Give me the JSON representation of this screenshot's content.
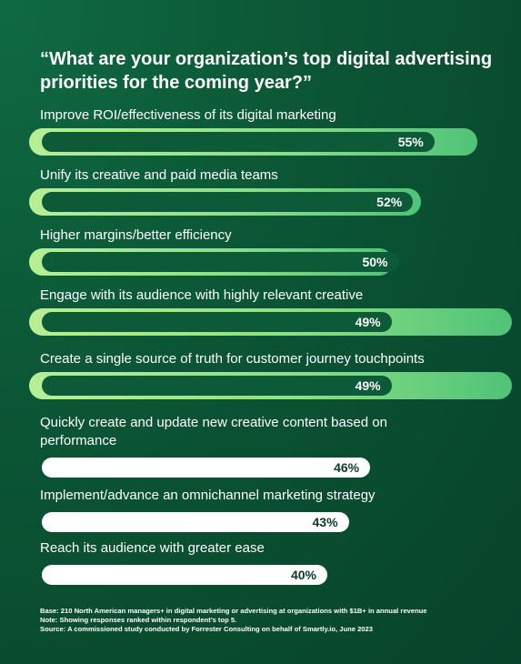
{
  "chart_data": {
    "type": "bar",
    "orientation": "horizontal",
    "title": "“What are your organization’s top digital advertising priorities for the coming year?”",
    "categories": [
      "Improve ROI/effectiveness of its digital marketing",
      "Unify its creative and paid media teams",
      "Higher margins/better efficiency",
      "Engage with its audience with highly relevant creative",
      "Create a single source of truth for customer journey touchpoints",
      "Quickly create and update new creative content based on performance",
      "Implement/advance an omnichannel marketing strategy",
      "Reach its audience with greater ease"
    ],
    "values": [
      55,
      52,
      50,
      49,
      49,
      46,
      43,
      40
    ],
    "value_labels": [
      "55%",
      "52%",
      "50%",
      "49%",
      "49%",
      "46%",
      "43%",
      "40%"
    ],
    "highlighted": [
      true,
      true,
      true,
      true,
      true,
      false,
      false,
      false
    ],
    "xlim": [
      0,
      60
    ],
    "grid": false,
    "legend": "none"
  },
  "footnotes": {
    "base": "Base: 210 North American managers+ in digital marketing or advertising at organizations with $1B+ in annual revenue",
    "note": "Note: Showing responses ranked within respondent’s top 5.",
    "source": "Source: A commissioned study conducted by Forrester Consulting on behalf of Smartly.io, June 2023"
  },
  "colors": {
    "background": "#0b5535",
    "highlight_track": "#8ddf85",
    "highlight_bar": "#0c5a37",
    "plain_bar": "#ffffff"
  }
}
